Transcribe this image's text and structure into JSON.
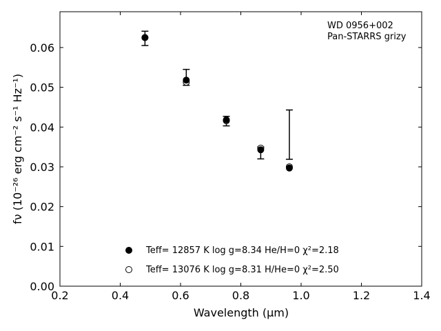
{
  "chart_data": {
    "type": "scatter",
    "annotation": [
      "WD 0956+002",
      "Pan-STARRS grizy"
    ],
    "xlabel": "Wavelength (μm)",
    "ylabel": "fν (10⁻²⁶ erg cm⁻² s⁻¹ Hz⁻¹)",
    "xlim": [
      0.2,
      1.4
    ],
    "ylim": [
      0.0,
      0.069
    ],
    "xticks": [
      "0.2",
      "0.4",
      "0.6",
      "0.8",
      "1.0",
      "1.2",
      "1.4"
    ],
    "yticks": [
      "0.00",
      "0.01",
      "0.02",
      "0.03",
      "0.04",
      "0.05",
      "0.06"
    ],
    "grid": false,
    "legend_position": "bottom-center",
    "observed": {
      "x": [
        0.482,
        0.619,
        0.752,
        0.866,
        0.961
      ],
      "y": [
        0.0623,
        0.0525,
        0.0415,
        0.0335,
        0.0381
      ],
      "yerr_low": [
        0.0018,
        0.002,
        0.0012,
        0.0015,
        0.0062
      ],
      "yerr_high": [
        0.0018,
        0.002,
        0.0012,
        0.0015,
        0.0062
      ]
    },
    "series": [
      {
        "name": "Teff= 12857 K  log g=8.34  He/H=0  χ²=2.18",
        "marker": "filled-circle",
        "x": [
          0.482,
          0.619,
          0.752,
          0.866,
          0.961
        ],
        "y": [
          0.0625,
          0.0518,
          0.0418,
          0.0343,
          0.0297
        ]
      },
      {
        "name": "Teff= 13076 K  log g=8.31  H/He=0  χ²=2.50",
        "marker": "open-circle",
        "x": [
          0.482,
          0.619,
          0.752,
          0.866,
          0.961
        ],
        "y": [
          0.0625,
          0.0513,
          0.0416,
          0.0347,
          0.03
        ]
      }
    ]
  }
}
